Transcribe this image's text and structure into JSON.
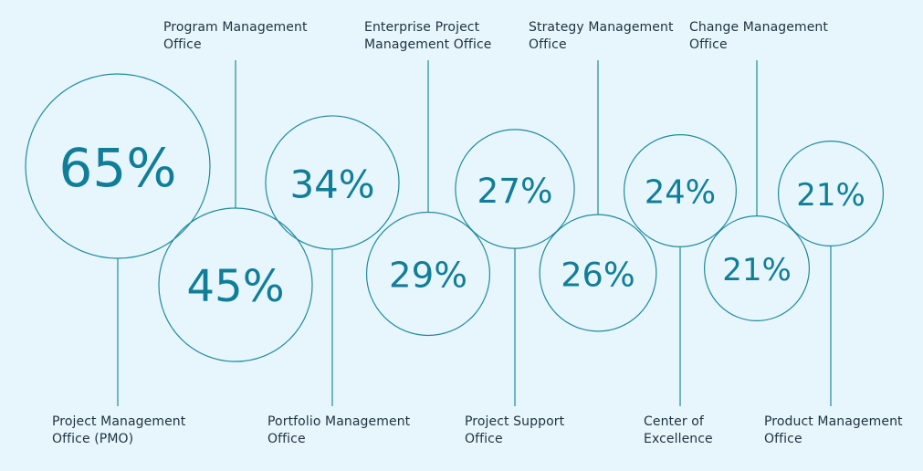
{
  "chart_data": {
    "type": "bubble",
    "title": "",
    "colors": {
      "background": "#e7f6fc",
      "stroke": "#1f8aa0",
      "value_text": "#117e99",
      "label_text": "#1f3240"
    },
    "categories": [
      "Project Management Office (PMO)",
      "Program Management Office",
      "Portfolio Management Office",
      "Enterprise Project Management Office",
      "Project Support Office",
      "Strategy Management Office",
      "Center of Excellence",
      "Change Management Office",
      "Product Management Office"
    ],
    "values": [
      65,
      45,
      34,
      29,
      27,
      26,
      24,
      21,
      21
    ],
    "items": [
      {
        "name": "Project Management Office (PMO)",
        "label_lines": [
          "Project Management",
          "Office (PMO)"
        ],
        "value": 65,
        "display": "65%",
        "label_side": "bottom"
      },
      {
        "name": "Program Management Office",
        "label_lines": [
          "Program Management",
          "Office"
        ],
        "value": 45,
        "display": "45%",
        "label_side": "top"
      },
      {
        "name": "Portfolio Management Office",
        "label_lines": [
          "Portfolio Management",
          "Office"
        ],
        "value": 34,
        "display": "34%",
        "label_side": "bottom"
      },
      {
        "name": "Enterprise Project Management Office",
        "label_lines": [
          "Enterprise Project",
          "Management Office"
        ],
        "value": 29,
        "display": "29%",
        "label_side": "top"
      },
      {
        "name": "Project Support Office",
        "label_lines": [
          "Project Support",
          "Office"
        ],
        "value": 27,
        "display": "27%",
        "label_side": "bottom"
      },
      {
        "name": "Strategy Management Office",
        "label_lines": [
          "Strategy Management",
          "Office"
        ],
        "value": 26,
        "display": "26%",
        "label_side": "top"
      },
      {
        "name": "Center of Excellence",
        "label_lines": [
          "Center of",
          "Excellence"
        ],
        "value": 24,
        "display": "24%",
        "label_side": "bottom"
      },
      {
        "name": "Change Management Office",
        "label_lines": [
          "Change Management",
          "Office"
        ],
        "value": 21,
        "display": "21%",
        "label_side": "top"
      },
      {
        "name": "Product Management Office",
        "label_lines": [
          "Product Management",
          "Office"
        ],
        "value": 21,
        "display": "21%",
        "label_side": "bottom"
      }
    ]
  }
}
